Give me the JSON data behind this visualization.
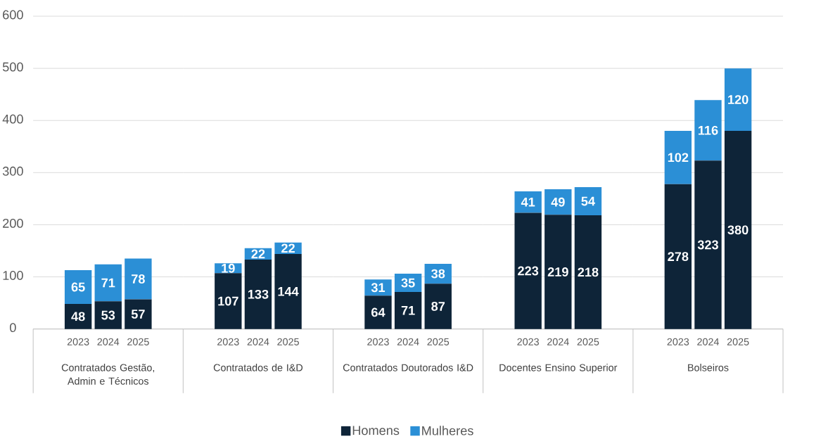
{
  "chart_data": [
    {
      "type": "bar",
      "stacked": true,
      "xlabel": "Contratados Gestão, Admin e Técnicos",
      "categories": [
        "2023",
        "2024",
        "2025"
      ],
      "series": [
        {
          "color": "#0e2438",
          "values": [
            48,
            53,
            57
          ]
        },
        {
          "color": "#2b8fd6",
          "values": [
            65,
            71,
            78
          ]
        }
      ],
      "ylim": [
        0,
        600
      ],
      "yticks": [
        0,
        100,
        200,
        300,
        400,
        500,
        600
      ],
      "grid": "y",
      "data_labels": true
    },
    {
      "type": "bar",
      "stacked": true,
      "xlabel": "Contratados de I&D",
      "categories": [
        "2023",
        "2024",
        "2025"
      ],
      "series": [
        {
          "color": "#0e2438",
          "values": [
            107,
            133,
            144
          ]
        },
        {
          "color": "#2b8fd6",
          "values": [
            19,
            22,
            22
          ]
        }
      ],
      "ylim": [
        0,
        600
      ],
      "yticks": [
        0,
        100,
        200,
        300,
        400,
        500,
        600
      ],
      "grid": "y",
      "data_labels": true,
      "tick_labels": "x"
    },
    {
      "type": "bar",
      "stacked": true,
      "xlabel": "Contratados Doutorados I&D",
      "categories": [
        "2023",
        "2024",
        "2025"
      ],
      "series": [
        {
          "name": "Homens",
          "color": "#0e2438",
          "values": [
            64,
            71,
            87
          ]
        },
        {
          "name": "Mulheres",
          "color": "#2b8fd6",
          "values": [
            31,
            35,
            38
          ]
        }
      ],
      "ylim": [
        0,
        600
      ],
      "yticks": [
        0,
        100,
        200,
        300,
        400,
        500,
        600
      ],
      "grid": "y",
      "data_labels": true,
      "tick_labels": "x",
      "legend": "bottom"
    },
    {
      "type": "bar",
      "stacked": true,
      "xlabel": "Docentes Ensino Superior",
      "categories": [
        "2023",
        "2024",
        "2025"
      ],
      "series": [
        {
          "color": "#0e2438",
          "values": [
            223,
            219,
            218
          ]
        },
        {
          "color": "#2b8fd6",
          "values": [
            41,
            49,
            54
          ]
        }
      ],
      "ylim": [
        0,
        600
      ],
      "yticks": [
        0,
        100,
        200,
        300,
        400,
        500,
        600
      ],
      "grid": "y",
      "data_labels": true,
      "tick_labels": "x"
    },
    {
      "type": "bar",
      "stacked": true,
      "xlabel": "Bolseiros",
      "categories": [
        "2023",
        "2024",
        "2025"
      ],
      "series": [
        {
          "color": "#0e2438",
          "values": [
            278,
            323,
            380
          ]
        },
        {
          "color": "#2b8fd6",
          "values": [
            102,
            116,
            120
          ]
        }
      ],
      "ylim": [
        0,
        600
      ],
      "yticks": [
        0,
        100,
        200,
        300,
        400,
        500,
        600
      ],
      "grid": "y",
      "data_labels": true,
      "tick_labels": "x"
    }
  ]
}
